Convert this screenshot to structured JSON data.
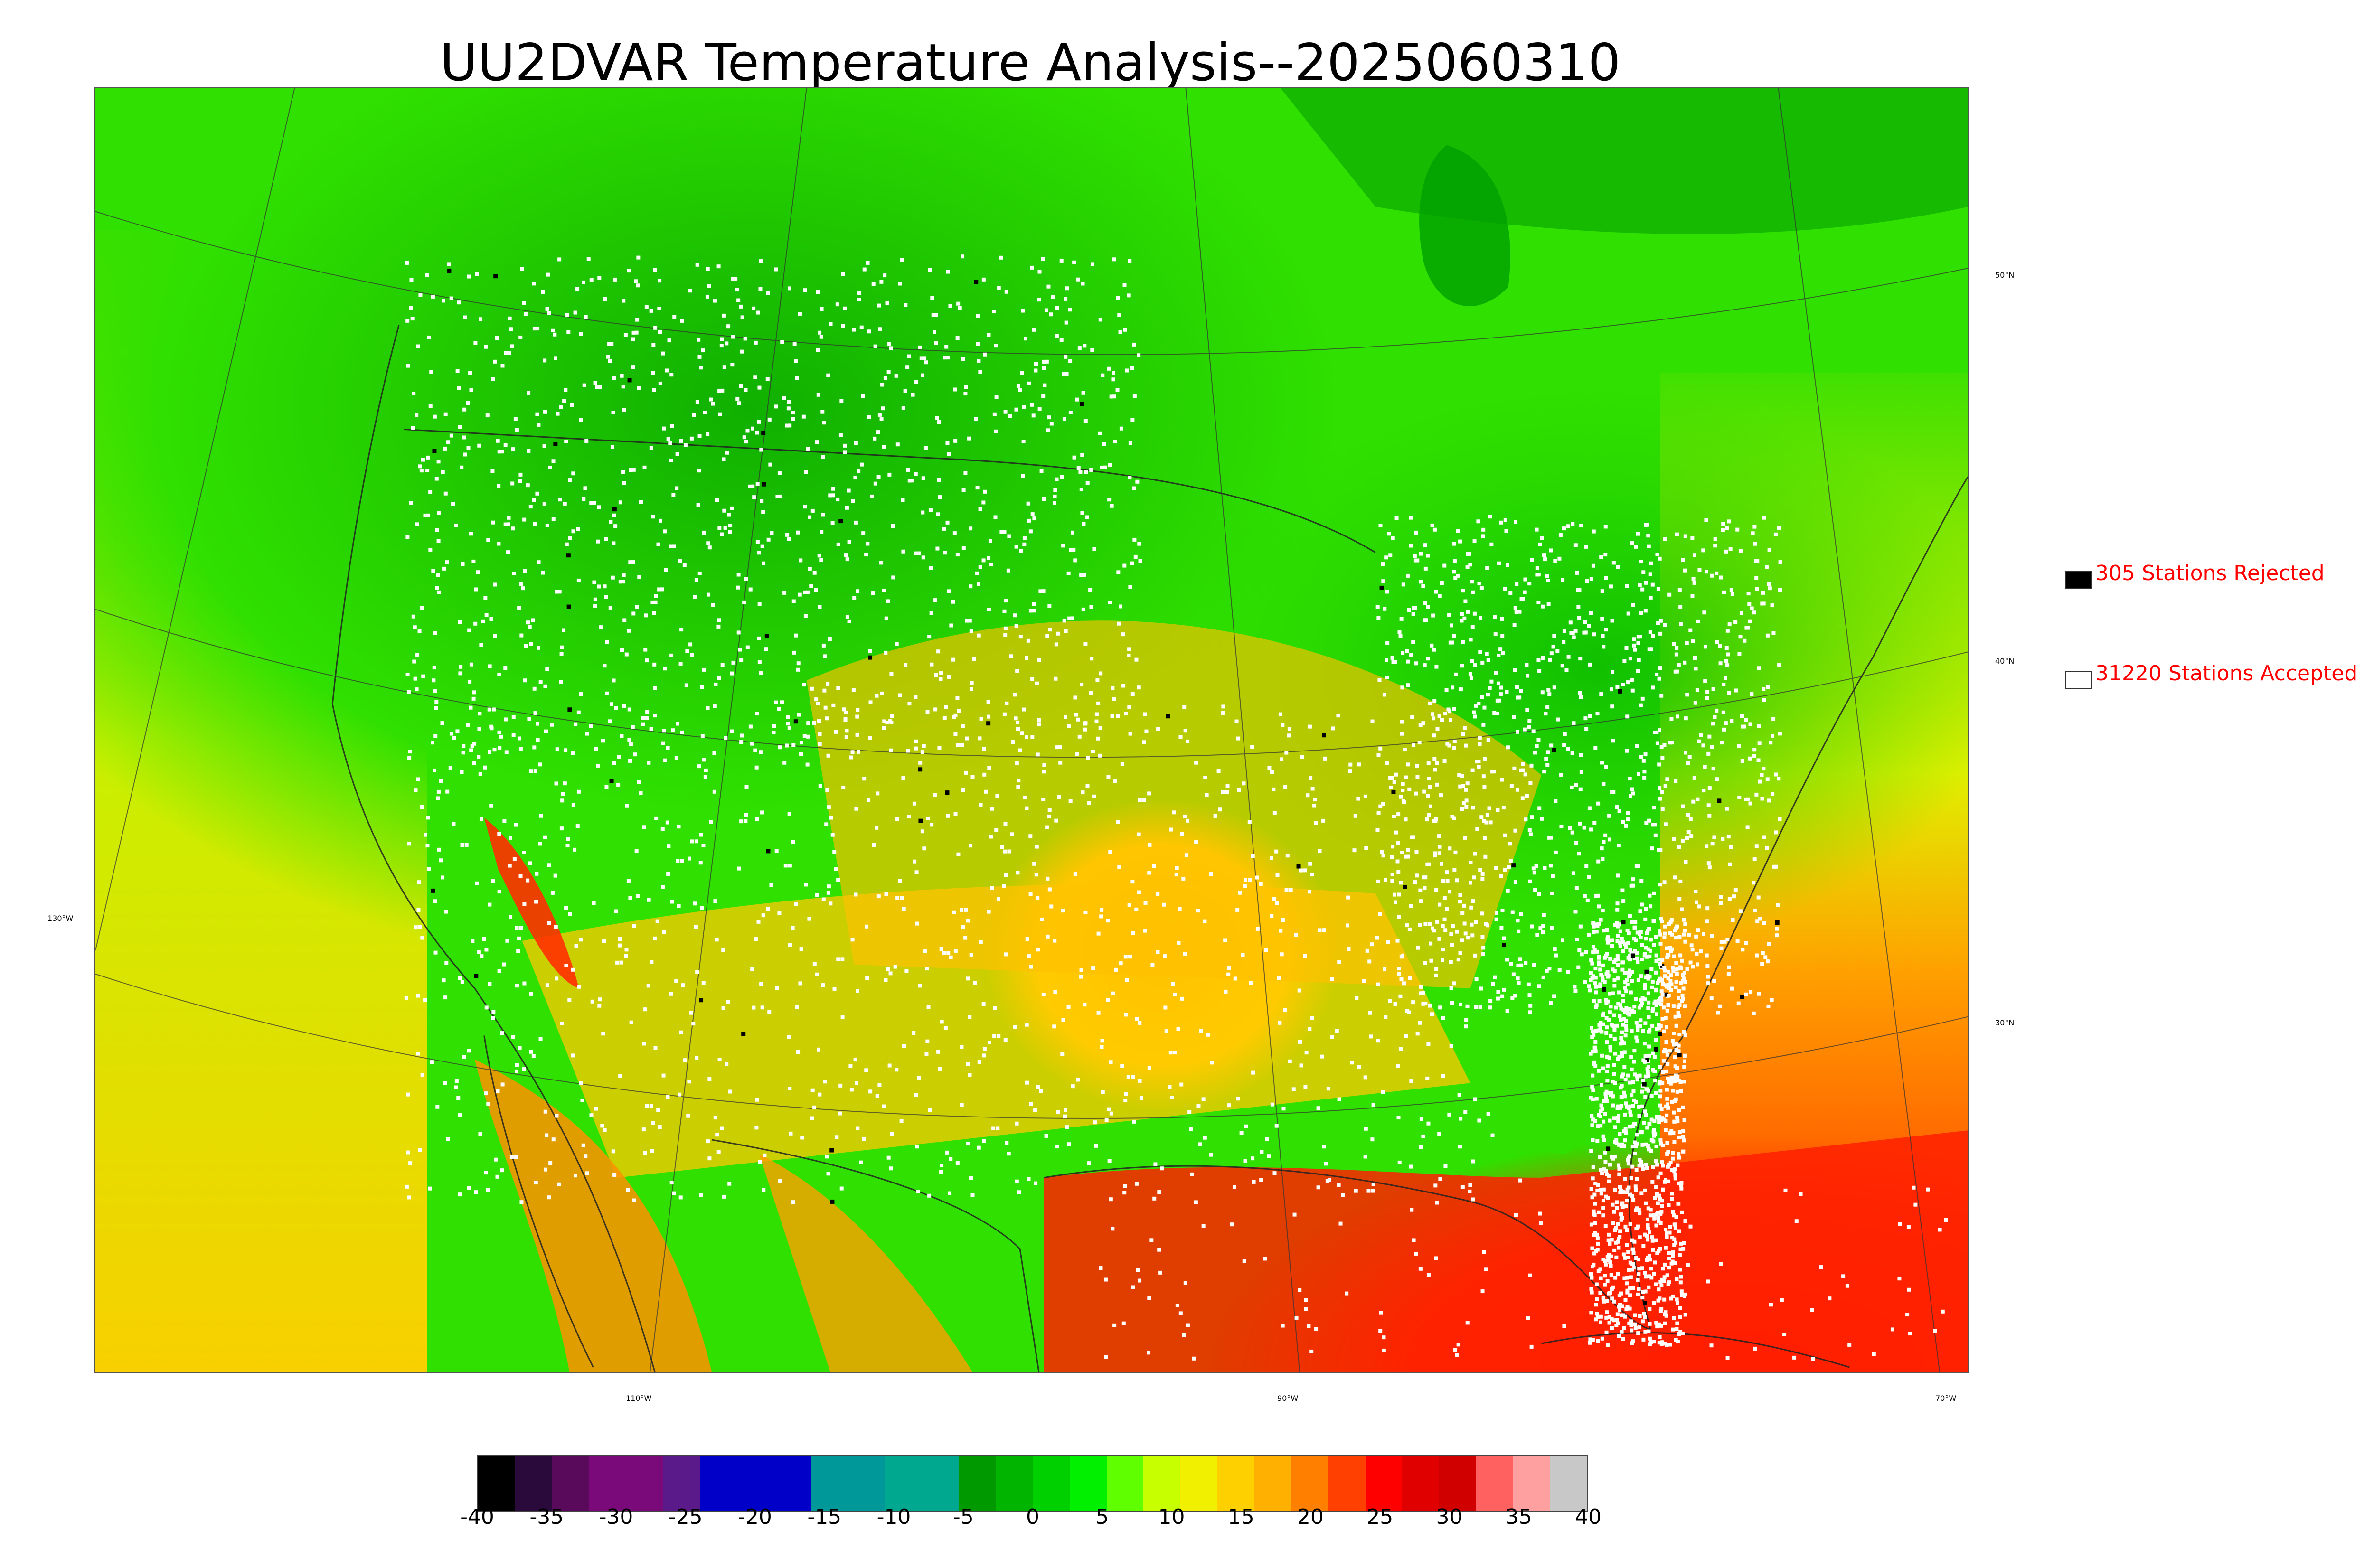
{
  "title": "UU2DVAR Temperature Analysis--2025060310",
  "legend": {
    "rejected": {
      "label": "305 Stations Rejected",
      "swatch_color": "#000000"
    },
    "accepted": {
      "label": "31220 Stations Accepted",
      "swatch_color": "#ffffff"
    }
  },
  "map": {
    "lat_labels": [
      "50°N",
      "40°N",
      "30°N"
    ],
    "lon_labels": [
      "130°W",
      "110°W",
      "90°W",
      "70°W"
    ]
  },
  "colorbar": {
    "ticks": [
      "-40",
      "-35",
      "-30",
      "-25",
      "-20",
      "-15",
      "-10",
      "-5",
      "0",
      "5",
      "10",
      "15",
      "20",
      "25",
      "30",
      "35",
      "40"
    ],
    "range": [
      -40,
      40
    ],
    "colors": [
      "#000000",
      "#2a0a3a",
      "#5a0a5a",
      "#7a0a7a",
      "#7a0a7a",
      "#5a1a8a",
      "#0000c8",
      "#0000c8",
      "#0000c8",
      "#009898",
      "#009898",
      "#00a890",
      "#00a890",
      "#009a00",
      "#00b400",
      "#00d000",
      "#00f000",
      "#60ff00",
      "#c8ff00",
      "#f0f000",
      "#ffd000",
      "#ffb000",
      "#ff8000",
      "#ff4000",
      "#ff0000",
      "#e00000",
      "#d00000",
      "#ff6060",
      "#ffa0a0",
      "#c8c8c8"
    ]
  }
}
